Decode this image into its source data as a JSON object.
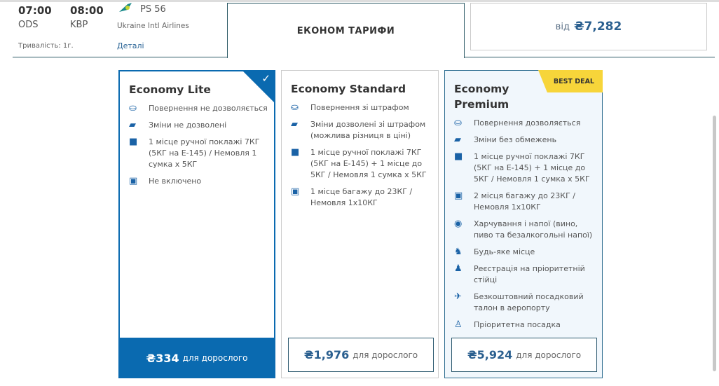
{
  "flight": {
    "depart_time": "07:00",
    "arrive_time": "08:00",
    "depart_code": "ODS",
    "arrive_code": "KBP",
    "flight_no": "PS 56",
    "airline": "Ukraine Intl Airlines",
    "duration": "Тривалість: 1г.",
    "details_link": "Деталі"
  },
  "tab": {
    "label": "ЕКОНОМ ТАРИФИ"
  },
  "other_fare": {
    "prefix": "від",
    "price": "₴7,282"
  },
  "colors": {
    "primary": "#0a6ab0",
    "badge": "#f7d53a",
    "text": "#333333"
  },
  "fares": [
    {
      "name": "Economy Lite",
      "selected": true,
      "features": [
        {
          "icon": "refund-icon",
          "text": "Повернення не дозволяється"
        },
        {
          "icon": "ticket-change-icon",
          "text": "Зміни не дозволені"
        },
        {
          "icon": "hand-bag-icon",
          "text": "1 місце ручної поклажі 7КГ (5КГ на E-145) / Немовля 1 сумка х 5КГ"
        },
        {
          "icon": "luggage-icon",
          "text": "Не включено"
        }
      ],
      "price": "₴334",
      "price_suffix": "для дорослого"
    },
    {
      "name": "Economy Standard",
      "features": [
        {
          "icon": "refund-icon",
          "text": "Повернення зі штрафом"
        },
        {
          "icon": "ticket-change-icon",
          "text": "Зміни дозволені зі штрафом (можлива різниця в ціні)"
        },
        {
          "icon": "hand-bag-icon",
          "text": "1 місце ручної поклажі 7КГ (5КГ на E-145) + 1 місце до 5КГ / Немовля 1 сумка х 5КГ"
        },
        {
          "icon": "luggage-icon",
          "text": "1 місце багажу до 23КГ / Немовля 1х10КГ"
        }
      ],
      "price": "₴1,976",
      "price_suffix": "для дорослого"
    },
    {
      "name": "Economy Premium",
      "badge": "BEST DEAL",
      "features": [
        {
          "icon": "refund-icon",
          "text": "Повернення дозволяється"
        },
        {
          "icon": "ticket-change-icon",
          "text": "Зміни без обмежень"
        },
        {
          "icon": "hand-bag-icon",
          "text": "1 місце ручної поклажі 7КГ (5КГ на E-145) + 1 місце до 5КГ / Немовля 1 сумка х 5КГ"
        },
        {
          "icon": "luggage-icon",
          "text": "2 місця багажу до 23КГ / Немовля 1х10КГ"
        },
        {
          "icon": "meal-icon",
          "text": "Харчування і напої (вино, пиво та безалкогольні напої)"
        },
        {
          "icon": "seat-icon",
          "text": "Будь-яке місце"
        },
        {
          "icon": "priority-checkin-icon",
          "text": "Реєстрація на пріоритетній стійці"
        },
        {
          "icon": "boarding-pass-icon",
          "text": "Безкоштовний посадковий талон в аеропорту"
        },
        {
          "icon": "priority-boarding-icon",
          "text": "Пріоритетна посадка"
        }
      ],
      "price": "₴5,924",
      "price_suffix": "для дорослого"
    }
  ]
}
